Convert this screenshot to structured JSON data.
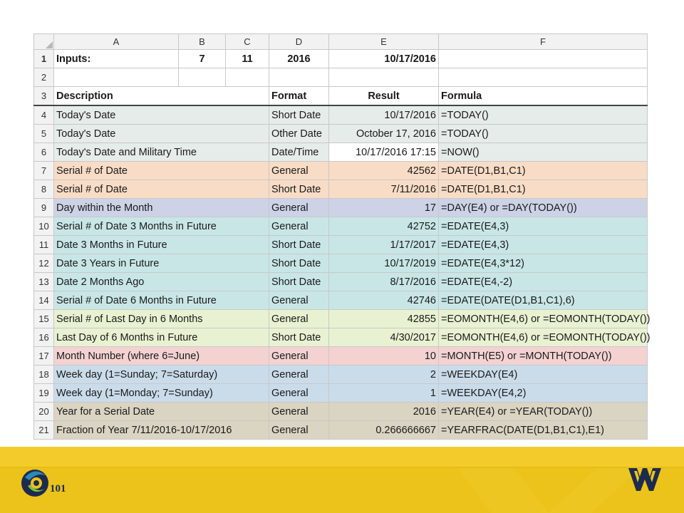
{
  "columns": [
    "",
    "A",
    "B",
    "C",
    "D",
    "E",
    "F"
  ],
  "inputs_row": {
    "num": "1",
    "label": "Inputs:",
    "b": "7",
    "c": "11",
    "d": "2016",
    "e": "10/17/2016"
  },
  "blank_row": {
    "num": "2"
  },
  "header_row": {
    "num": "3",
    "description": "Description",
    "format": "Format",
    "result": "Result",
    "formula": "Formula"
  },
  "rows": [
    {
      "num": "4",
      "description": "Today's Date",
      "format": "Short Date",
      "result": "10/17/2016",
      "formula": "=TODAY()",
      "color": "#e6ecea"
    },
    {
      "num": "5",
      "description": "Today's Date",
      "format": "Other Date",
      "result": "October 17, 2016",
      "formula": "=TODAY()",
      "color": "#e6ecea"
    },
    {
      "num": "6",
      "description": "Today's Date and Military Time",
      "format": "Date/Time",
      "result": "10/17/2016 17:15",
      "formula": "=NOW()",
      "color": "#e6ecea"
    },
    {
      "num": "7",
      "description": "Serial # of Date",
      "format": "General",
      "result": "42562",
      "formula": "=DATE(D1,B1,C1)",
      "color": "#f8dcc6"
    },
    {
      "num": "8",
      "description": "Serial # of Date",
      "format": "Short Date",
      "result": "7/11/2016",
      "formula": "=DATE(D1,B1,C1)",
      "color": "#f8dcc6"
    },
    {
      "num": "9",
      "description": "Day within the Month",
      "format": "General",
      "result": "17",
      "formula": "=DAY(E4) or =DAY(TODAY())",
      "color": "#cdd2e6"
    },
    {
      "num": "10",
      "description": "Serial # of Date 3 Months in Future",
      "format": "General",
      "result": "42752",
      "formula": "=EDATE(E4,3)",
      "color": "#c9e6e6"
    },
    {
      "num": "11",
      "description": "Date 3 Months in Future",
      "format": "Short Date",
      "result": "1/17/2017",
      "formula": "=EDATE(E4,3)",
      "color": "#c9e6e6"
    },
    {
      "num": "12",
      "description": "Date 3 Years in Future",
      "format": "Short Date",
      "result": "10/17/2019",
      "formula": "=EDATE(E4,3*12)",
      "color": "#c9e6e6"
    },
    {
      "num": "13",
      "description": "Date 2 Months Ago",
      "format": "Short Date",
      "result": "8/17/2016",
      "formula": "=EDATE(E4,-2)",
      "color": "#c9e6e6"
    },
    {
      "num": "14",
      "description": "Serial # of Date 6 Months in Future",
      "format": "General",
      "result": "42746",
      "formula": "=EDATE(DATE(D1,B1,C1),6)",
      "color": "#c9e6e6"
    },
    {
      "num": "15",
      "description": "Serial # of Last Day in 6 Months",
      "format": "General",
      "result": "42855",
      "formula": "=EOMONTH(E4,6) or =EOMONTH(TODAY())",
      "color": "#e8f2d2"
    },
    {
      "num": "16",
      "description": "Last Day of 6 Months in Future",
      "format": "Short Date",
      "result": "4/30/2017",
      "formula": "=EOMONTH(E4,6) or =EOMONTH(TODAY())",
      "color": "#e8f2d2"
    },
    {
      "num": "17",
      "description": "Month Number (where 6=June)",
      "format": "General",
      "result": "10",
      "formula": "=MONTH(E5) or =MONTH(TODAY())",
      "color": "#f4d2d2"
    },
    {
      "num": "18",
      "description": "Week day (1=Sunday; 7=Saturday)",
      "format": "General",
      "result": "2",
      "formula": "=WEEKDAY(E4)",
      "color": "#cadcea"
    },
    {
      "num": "19",
      "description": "Week day (1=Monday; 7=Sunday)",
      "format": "General",
      "result": "1",
      "formula": "=WEEKDAY(E4,2)",
      "color": "#cadcea"
    },
    {
      "num": "20",
      "description": "Year for a Serial Date",
      "format": "General",
      "result": "2016",
      "formula": "=YEAR(E4) or =YEAR(TODAY())",
      "color": "#dad4c2"
    },
    {
      "num": "21",
      "description": "Fraction of Year 7/11/2016-10/17/2016",
      "format": "General",
      "result": "0.266666667",
      "formula": "=YEARFRAC(DATE(D1,B1,C1),E1)",
      "color": "#dad4c2"
    }
  ],
  "logo_text": "101",
  "colors": {
    "footer": "#ecc31a",
    "wvu_navy": "#1d2b4f",
    "header_bg": "#f2f2f2"
  }
}
